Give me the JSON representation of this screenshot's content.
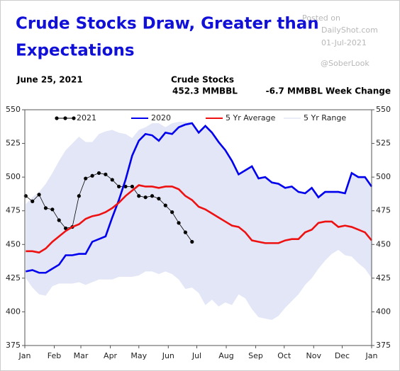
{
  "chart_data": {
    "type": "line",
    "title_lines": [
      "Crude Stocks Draw, Greater than",
      "Expectations"
    ],
    "watermark": {
      "posted": "Posted on",
      "site": "DailyShot.com",
      "date": "01-Jul-2021",
      "handle": "@SoberLook"
    },
    "header": {
      "date": "June 25, 2021",
      "label": "Crude Stocks",
      "level": "452.3 MMBBL",
      "change": "-6.7 MMBBL Week Change"
    },
    "x": [
      1,
      8,
      15,
      22,
      29,
      36,
      43,
      50,
      57,
      64,
      71,
      78,
      85,
      92,
      99,
      106,
      113,
      120,
      127,
      134,
      141,
      148,
      155,
      162,
      169,
      176,
      183,
      190,
      197,
      204,
      211,
      218,
      225,
      232,
      239,
      246,
      253,
      260,
      267,
      274,
      281,
      288,
      295,
      302,
      309,
      316,
      323,
      330,
      337,
      344,
      351,
      358,
      365
    ],
    "xlim": [
      0,
      365
    ],
    "xticks": [
      {
        "value": 0,
        "label": "Jan"
      },
      {
        "value": 31,
        "label": "Feb"
      },
      {
        "value": 59,
        "label": "Mar"
      },
      {
        "value": 90,
        "label": "Apr"
      },
      {
        "value": 120,
        "label": "May"
      },
      {
        "value": 151,
        "label": "Jun"
      },
      {
        "value": 181,
        "label": "Jul"
      },
      {
        "value": 212,
        "label": "Aug"
      },
      {
        "value": 243,
        "label": "Sep"
      },
      {
        "value": 273,
        "label": "Oct"
      },
      {
        "value": 304,
        "label": "Nov"
      },
      {
        "value": 334,
        "label": "Dec"
      },
      {
        "value": 365,
        "label": "Jan"
      }
    ],
    "ylim": [
      375,
      550
    ],
    "yticks": [
      375,
      400,
      425,
      450,
      475,
      500,
      525,
      550
    ],
    "y2lim": [
      375,
      550
    ],
    "y2ticks": [
      375,
      400,
      425,
      450,
      475,
      500,
      525,
      550
    ],
    "grid": false,
    "series": [
      {
        "name": "2021",
        "color": "#000000",
        "markers": true,
        "values": [
          486,
          482,
          487,
          477,
          476,
          468,
          462,
          463,
          486,
          499,
          501,
          503,
          502,
          498,
          493,
          493,
          493,
          486,
          485,
          486,
          484,
          479,
          474,
          466,
          459,
          452,
          null,
          null,
          null,
          null,
          null,
          null,
          null,
          null,
          null,
          null,
          null,
          null,
          null,
          null,
          null,
          null,
          null,
          null,
          null,
          null,
          null,
          null,
          null,
          null,
          null,
          null,
          null
        ]
      },
      {
        "name": "2020",
        "color": "#0000ee",
        "values": [
          430,
          431,
          429,
          429,
          432,
          435,
          442,
          442,
          443,
          443,
          452,
          454,
          456,
          470,
          483,
          498,
          516,
          527,
          532,
          531,
          527,
          533,
          532,
          537,
          539,
          540,
          533,
          538,
          533,
          526,
          520,
          512,
          502,
          505,
          508,
          499,
          500,
          496,
          495,
          492,
          493,
          489,
          488,
          492,
          485,
          489,
          489,
          489,
          488,
          503,
          500,
          500,
          493
        ]
      },
      {
        "name": "5 Yr Average",
        "color": "#ee1111",
        "values": [
          445,
          445,
          444,
          447,
          452,
          456,
          460,
          463,
          465,
          469,
          471,
          472,
          474,
          477,
          481,
          486,
          490,
          494,
          493,
          493,
          492,
          493,
          493,
          491,
          486,
          483,
          478,
          476,
          473,
          470,
          467,
          464,
          463,
          459,
          453,
          452,
          451,
          451,
          451,
          453,
          454,
          454,
          459,
          461,
          466,
          467,
          467,
          463,
          464,
          463,
          461,
          459,
          453
        ]
      },
      {
        "name": "5 Yr Range",
        "color": "#e3e6f6",
        "area": true,
        "high": [
          480,
          485,
          489,
          495,
          503,
          512,
          520,
          525,
          530,
          526,
          526,
          532,
          534,
          535,
          533,
          532,
          529,
          535,
          537,
          540,
          540,
          537,
          540,
          541,
          541,
          541,
          534,
          539,
          534,
          527,
          521,
          513,
          503,
          506,
          509,
          500,
          501,
          497,
          496,
          493,
          494,
          490,
          489,
          493,
          486,
          490,
          490,
          490,
          489,
          504,
          501,
          501,
          494
        ],
        "low": [
          425,
          418,
          413,
          412,
          419,
          421,
          421,
          421,
          422,
          420,
          422,
          424,
          424,
          424,
          426,
          426,
          426,
          427,
          430,
          430,
          428,
          430,
          428,
          424,
          417,
          418,
          414,
          405,
          409,
          404,
          407,
          405,
          413,
          410,
          402,
          396,
          395,
          394,
          397,
          403,
          408,
          413,
          420,
          425,
          432,
          438,
          443,
          446,
          442,
          441,
          436,
          432,
          425
        ]
      }
    ]
  }
}
